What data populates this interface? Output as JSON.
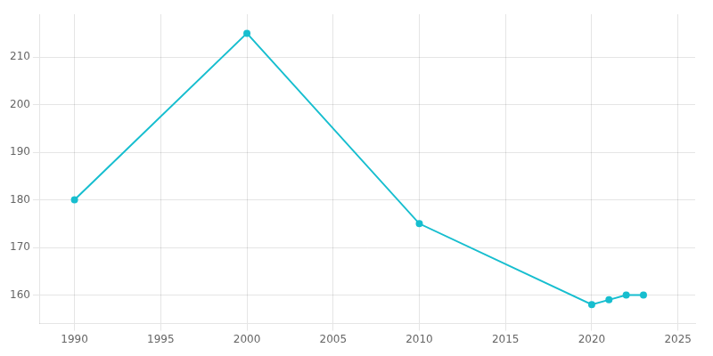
{
  "chart_data": {
    "type": "line",
    "x": [
      1990,
      2000,
      2010,
      2020,
      2021,
      2022,
      2023
    ],
    "values": [
      180,
      215,
      175,
      158,
      159,
      160,
      160
    ],
    "color": "#17BECF",
    "marker": "circle",
    "xlim": [
      1988,
      2026
    ],
    "ylim": [
      154,
      219
    ],
    "xticks": [
      1990,
      1995,
      2000,
      2005,
      2010,
      2015,
      2020,
      2025
    ],
    "yticks": [
      160,
      170,
      180,
      190,
      200,
      210
    ],
    "grid": true
  }
}
